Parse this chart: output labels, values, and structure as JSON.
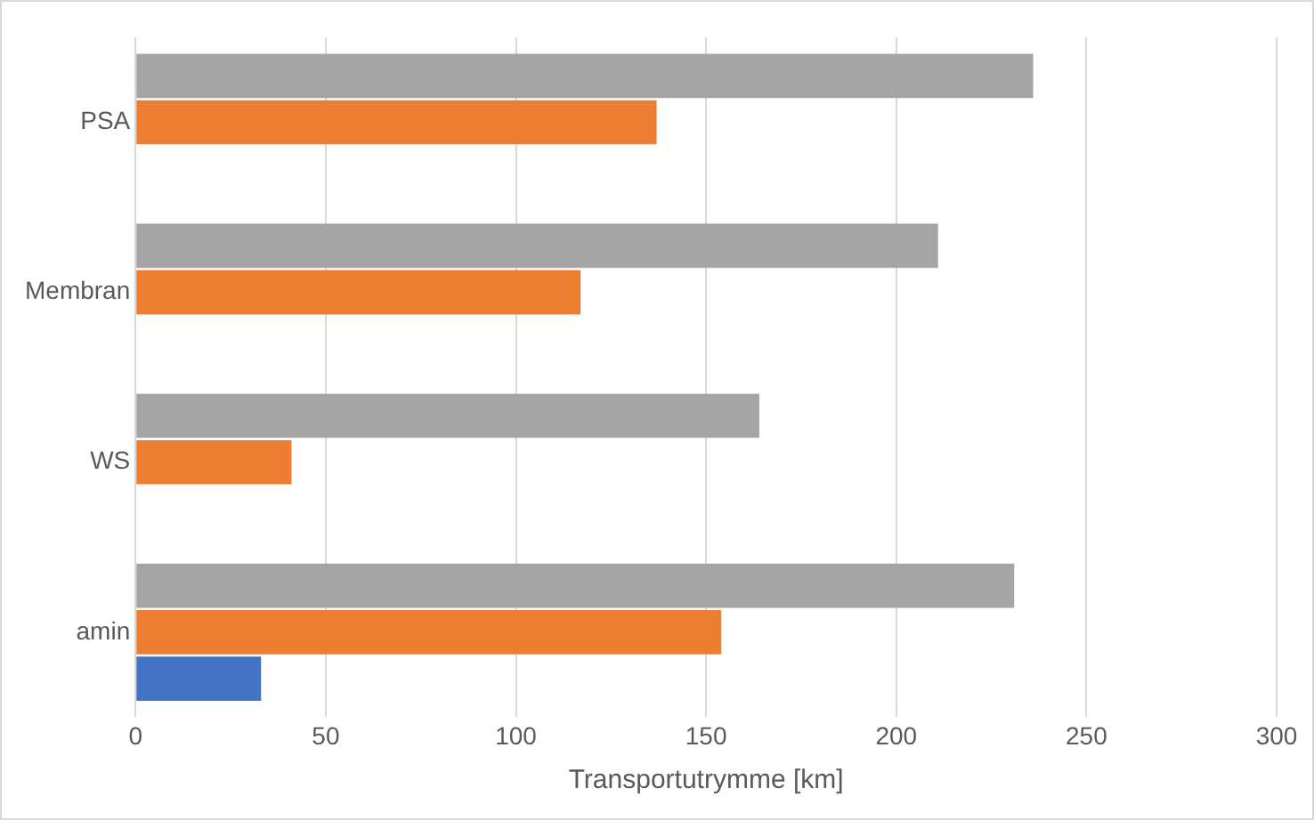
{
  "chart_data": {
    "type": "bar",
    "orientation": "horizontal",
    "xlabel": "Transportutrymme [km]",
    "categories": [
      "PSA",
      "Membran",
      "WS",
      "amin"
    ],
    "series": [
      {
        "color": "#a5a5a5",
        "values": [
          236,
          211,
          164,
          231
        ]
      },
      {
        "color": "#ed7d31",
        "values": [
          137,
          117,
          41,
          154
        ]
      },
      {
        "color": "#4472c4",
        "values": [
          null,
          null,
          null,
          33
        ]
      }
    ],
    "xlim": [
      0,
      300
    ],
    "xticks": [
      0,
      50,
      100,
      150,
      200,
      250,
      300
    ],
    "grid": "x",
    "legend": false
  }
}
